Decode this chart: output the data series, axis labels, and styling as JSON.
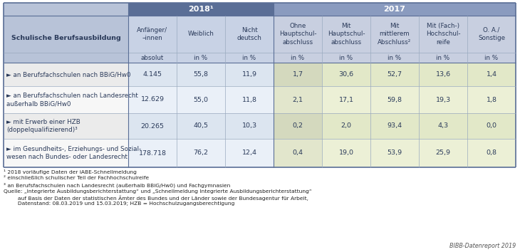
{
  "col_headers": [
    "Anfänger/\n–innen",
    "Weiblich",
    "Nicht\ndeutsch",
    "Ohne\nHauptschul-\nabschluss",
    "Mit\nHauptschul-\nabschluss",
    "Mit\nmittlerem\nAbschluss²",
    "Mit (Fach-)\nHochschul-\nreife",
    "O. A./\nSonstige"
  ],
  "col_units": [
    "absolut",
    "in %",
    "in %",
    "in %",
    "in %",
    "in %",
    "in %",
    "in %"
  ],
  "rows": [
    {
      "label": "► an Berufsfachschulen nach BBiG/Hw0",
      "values": [
        "4.145",
        "55,8",
        "11,9",
        "1,7",
        "30,6",
        "52,7",
        "13,6",
        "1,4"
      ]
    },
    {
      "label": "► an Berufsfachschulen nach Landesrecht\naußerhalb BBiG/Hw0",
      "values": [
        "12.629",
        "55,0",
        "11,8",
        "2,1",
        "17,1",
        "59,8",
        "19,3",
        "1,8"
      ]
    },
    {
      "label": "► mit Erwerb einer HZB\n(doppelqualifizierend)³",
      "values": [
        "20.265",
        "40,5",
        "10,3",
        "0,2",
        "2,0",
        "93,4",
        "4,3",
        "0,0"
      ]
    },
    {
      "label": "► im Gesundheits-, Erziehungs- und Sozial-\nwesen nach Bundes- oder Landesrecht",
      "values": [
        "178.718",
        "76,2",
        "12,4",
        "0,4",
        "19,0",
        "53,9",
        "25,9",
        "0,8"
      ]
    }
  ],
  "footnotes": [
    "¹ 2018 vorläufige Daten der iABE-Schnellmeldung",
    "² einschließlich schulischer Teil der Fachhochschulreife",
    "³ an Berufsfachschulen nach Landesrecht (außerhalb BBiG/Hw0) und Fachgymnasien"
  ],
  "source_line1": "Quelle: „Integrierte Ausbildungsberichterstattung“ und „Schnellmeldung Integrierte Ausbildungsberichterstattung“",
  "source_line2": "     auf Basis der Daten der statistischen Ämter des Bundes und der Länder sowie der Bundesagentur für Arbeit,",
  "source_line3": "     Datenstand: 08.03.2019 und 15.03.2019; HZB = Hochschulzugangsberechtigung",
  "branding": "BIBB-Datenreport 2019",
  "label_left": "Schulische Berufsausbildung",
  "group1_label": "2018¹",
  "group2_label": "2017",
  "color_group1_header": "#5a6e96",
  "color_group2_header": "#8a9bbf",
  "color_left_header_bg": "#b8c3d8",
  "color_sub_header_bg_2018": "#c8d2e5",
  "color_sub_header_bg_left": "#b8c3d8",
  "color_sub_header_bg_2017": "#c8cfe0",
  "color_unit_bg_left": "#b8c3d8",
  "color_unit_bg_2018": "#c8d2e5",
  "color_unit_bg_2017ohne": "#c8cfe0",
  "color_unit_bg_2017": "#c8cfe0",
  "color_data_row0_left": "#ebebeb",
  "color_data_row1_left": "#f7f7f7",
  "color_data_row0_2018": "#dce5f0",
  "color_data_row1_2018": "#eaf0f8",
  "color_data_row0_ohne": "#d4d9be",
  "color_data_row1_ohne": "#e2e6cc",
  "color_data_row0_2017": "#e2e8c8",
  "color_data_row1_2017": "#ecf0d6",
  "color_border_outer": "#5a6e96",
  "color_border_inner": "#9aaabf",
  "color_text": "#2a3a5a"
}
